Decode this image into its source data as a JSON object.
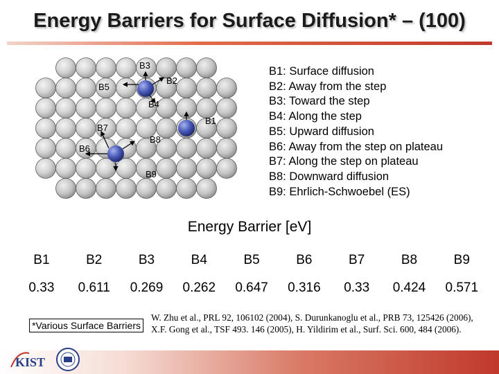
{
  "title": "Energy Barriers for Surface Diffusion* – (100)",
  "diagram_labels": {
    "b3": "B3",
    "b2": "B2",
    "b5": "B5",
    "b4": "B4",
    "b1": "B1",
    "b7": "B7",
    "b8": "B8",
    "b6": "B6",
    "b9": "B9"
  },
  "legend": [
    "B1: Surface diffusion",
    "B2: Away from the step",
    "B3: Toward the step",
    "B4: Along the step",
    "B5: Upward diffusion",
    "B6: Away from the step on plateau",
    "B7: Along the step on plateau",
    "B8: Downward diffusion",
    "B9: Ehrlich-Schwoebel (ES)"
  ],
  "table": {
    "title": "Energy Barrier [eV]",
    "headers": [
      "B1",
      "B2",
      "B3",
      "B4",
      "B5",
      "B6",
      "B7",
      "B8",
      "B9"
    ],
    "values": [
      "0.33",
      "0.611",
      "0.269",
      "0.262",
      "0.647",
      "0.316",
      "0.33",
      "0.424",
      "0.571"
    ]
  },
  "footnote_box": "*Various Surface Barriers",
  "references": {
    "line1": "W. Zhu et al., PRL 92, 106102 (2004), S. Durunkanoglu et al., PRB 73, 125426 (2006),",
    "line2": "X.F. Gong et al., TSF 493. 146 (2005), H. Yildirim et al., Surf. Sci. 600, 484 (2006)."
  },
  "colors": {
    "substrate": "#c4c4c4",
    "adatom": "#4a5ab8",
    "accent": "#c0392b"
  },
  "logos": {
    "kist": "KIST",
    "seal": "university-seal"
  }
}
